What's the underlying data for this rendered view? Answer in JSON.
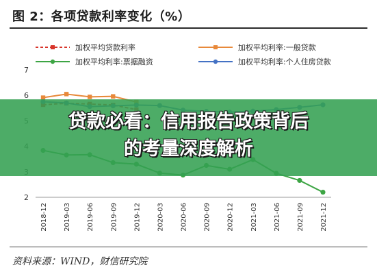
{
  "figure": {
    "title": "图 2：各项贷款利率变化（%）",
    "source": "资料来源：WIND，财信研究院"
  },
  "overlay": {
    "line1": "贷款必看：信用报告政策背后",
    "line2": "的考量深度解析",
    "color": "#34a052"
  },
  "chart_data": {
    "type": "line",
    "categories": [
      "2018-12",
      "2019-03",
      "2019-06",
      "2019-09",
      "2019-12",
      "2020-03",
      "2020-06",
      "2020-09",
      "2020-12",
      "2021-03",
      "2021-06",
      "2021-09",
      "2021-12"
    ],
    "y_ticks": [
      2,
      3,
      4,
      5,
      6,
      7
    ],
    "ylim": [
      2,
      7
    ],
    "grid": false,
    "legend_position": "top",
    "series": [
      {
        "name": "加权平均贷款利率",
        "color": "#d8342a",
        "dash": true,
        "marker": "square",
        "values": [
          5.63,
          5.69,
          5.66,
          5.62,
          5.44,
          null,
          null,
          null,
          null,
          null,
          null,
          null,
          null
        ]
      },
      {
        "name": "加权平均利率:一般贷款",
        "color": "#e8893a",
        "dash": false,
        "marker": "square",
        "values": [
          5.91,
          6.05,
          5.94,
          5.96,
          5.74,
          null,
          null,
          null,
          null,
          null,
          null,
          null,
          null
        ]
      },
      {
        "name": "加权平均利率:票据融资",
        "color": "#3da544",
        "dash": false,
        "marker": "circle",
        "values": [
          3.84,
          3.66,
          3.67,
          3.36,
          3.3,
          2.95,
          2.87,
          3.25,
          3.1,
          3.48,
          2.94,
          2.66,
          2.2
        ]
      },
      {
        "name": "加权平均利率:个人住房贷款",
        "color": "#4472c4",
        "dash": false,
        "marker": "circle",
        "values": [
          5.75,
          5.7,
          5.56,
          5.59,
          5.62,
          5.6,
          5.42,
          5.37,
          5.34,
          5.38,
          5.44,
          5.53,
          5.63
        ]
      }
    ]
  }
}
